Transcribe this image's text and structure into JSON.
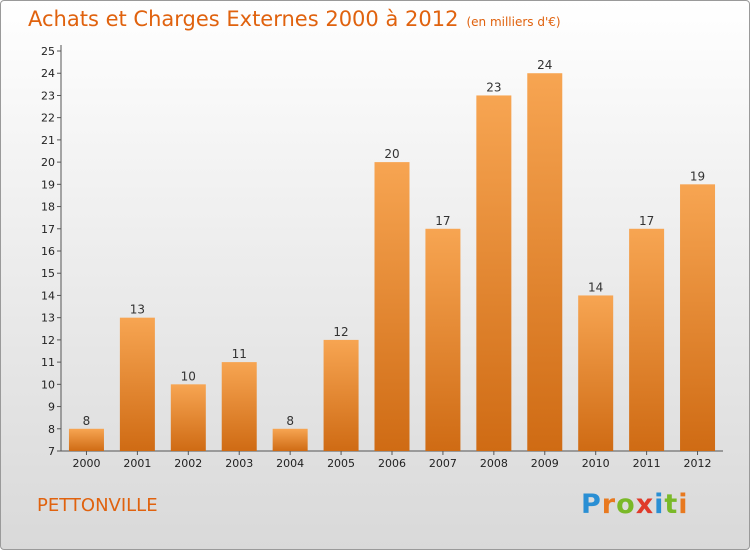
{
  "title": "Achats et Charges Externes 2000 à 2012",
  "subtitle": "(en milliers d'€)",
  "location": "PETTONVILLE",
  "logo": {
    "text": "Proxiti",
    "letters": [
      {
        "ch": "P",
        "color": "#2a8fd4"
      },
      {
        "ch": "r",
        "color": "#e8791f"
      },
      {
        "ch": "o",
        "color": "#7ab928"
      },
      {
        "ch": "x",
        "color": "#e03a2a"
      },
      {
        "ch": "i",
        "color": "#2a8fd4"
      },
      {
        "ch": "t",
        "color": "#7ab928"
      },
      {
        "ch": "i",
        "color": "#e8791f"
      }
    ]
  },
  "colors": {
    "bar_top": "#f7a552",
    "bar_bottom": "#cf6b14",
    "title": "#e0620e"
  },
  "chart_data": {
    "type": "bar",
    "categories": [
      "2000",
      "2001",
      "2002",
      "2003",
      "2004",
      "2005",
      "2006",
      "2007",
      "2008",
      "2009",
      "2010",
      "2011",
      "2012"
    ],
    "values": [
      8,
      13,
      10,
      11,
      8,
      12,
      20,
      17,
      23,
      24,
      14,
      17,
      19
    ],
    "ylim": [
      7,
      25
    ],
    "yticks": [
      7,
      8,
      9,
      10,
      11,
      12,
      13,
      14,
      15,
      16,
      17,
      18,
      19,
      20,
      21,
      22,
      23,
      24,
      25
    ],
    "grid": false
  }
}
